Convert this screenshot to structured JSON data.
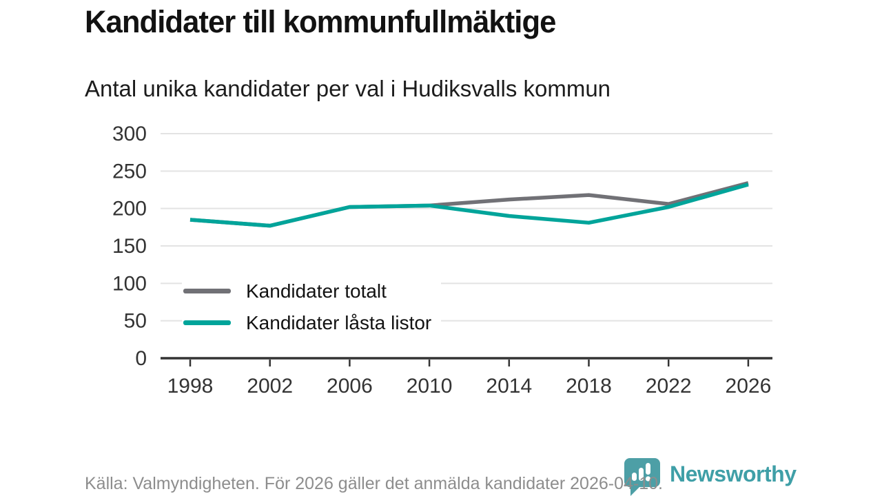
{
  "page": {
    "title": "Kandidater till kommunfullmäktige",
    "subtitle": "Antal unika kandidater per val i Hudiksvalls kommun",
    "source_note": "Källa: Valmyndigheten. För 2026 gäller det anmälda kandidater 2026-04-10.",
    "branding": {
      "name": "Newsworthy",
      "logo_icon": "bar-chart-speech-bubble-icon",
      "logo_color": "#4d9fa6",
      "wordmark_color": "#3f9fa7"
    }
  },
  "colors": {
    "title_text": "#121212",
    "axis_text": "#333333",
    "grid": "#e3e3e3",
    "axis_line": "#333333",
    "footer_text": "#8d8d8d",
    "series_total": "#717176",
    "series_locked": "#00a49a"
  },
  "chart_data": {
    "type": "line",
    "title": "Kandidater till kommunfullmäktige",
    "subtitle": "Antal unika kandidater per val i Hudiksvalls kommun",
    "x": [
      1998,
      2002,
      2006,
      2010,
      2014,
      2018,
      2022,
      2026
    ],
    "series": [
      {
        "name": "Kandidater totalt",
        "color": "#717176",
        "values": [
          185,
          177,
          202,
          204,
          212,
          218,
          206,
          234
        ]
      },
      {
        "name": "Kandidater låsta listor",
        "color": "#00a49a",
        "values": [
          185,
          177,
          202,
          204,
          190,
          181,
          202,
          232
        ]
      }
    ],
    "xlabel": "",
    "ylabel": "",
    "ylim": [
      0,
      300
    ],
    "yticks": [
      0,
      50,
      100,
      150,
      200,
      250,
      300
    ],
    "grid": "horizontal-only",
    "legend_position": "inside-lower-left"
  }
}
